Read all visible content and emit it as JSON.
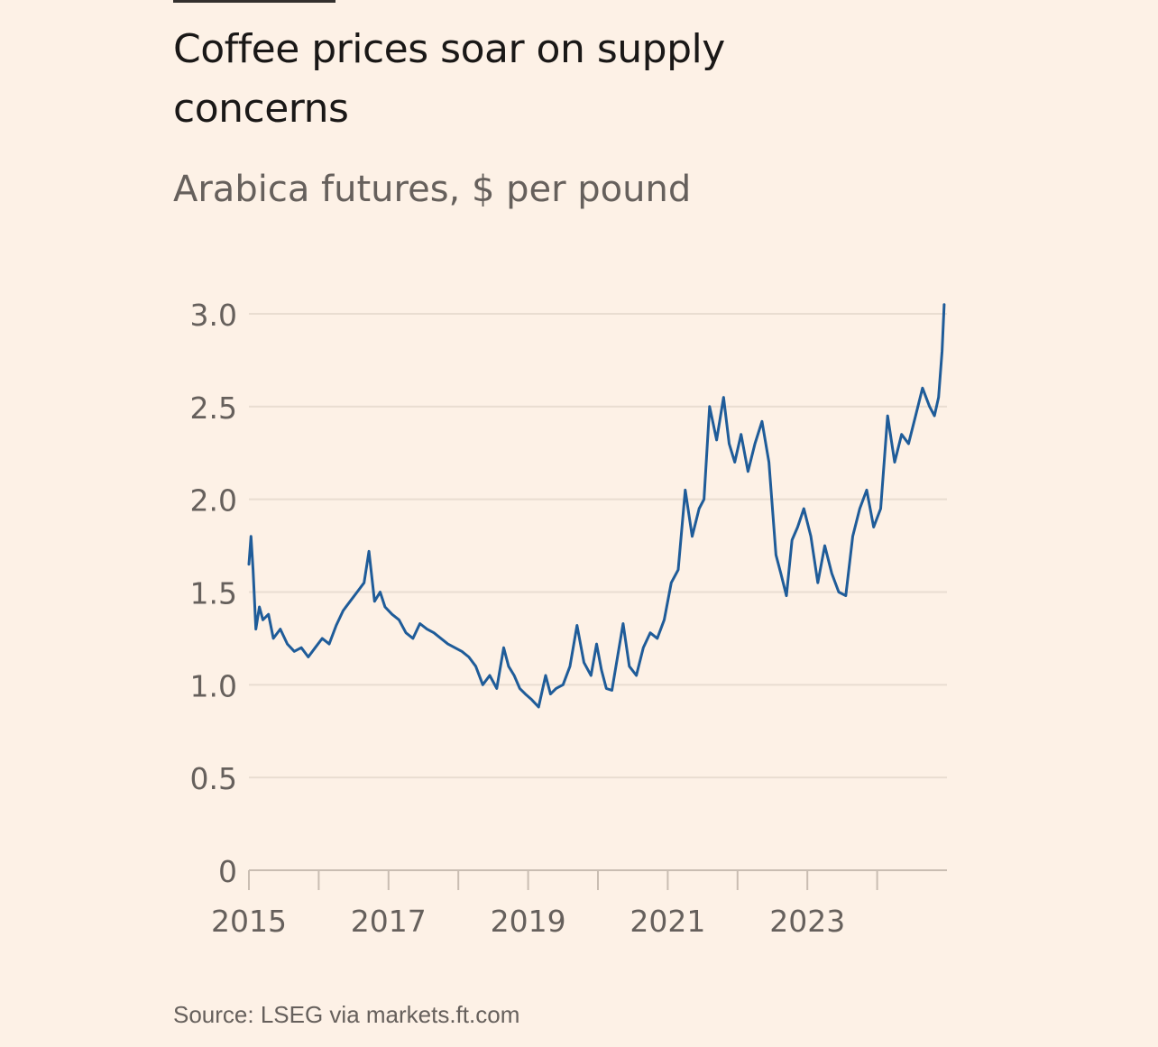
{
  "header": {
    "title": "Coffee prices soar on supply concerns",
    "subtitle": "Arabica futures, $ per pound"
  },
  "footer": {
    "source": "Source: LSEG via markets.ft.com"
  },
  "colors": {
    "background": "#fdf1e6",
    "line": "#1f5c99",
    "grid": "#e9ddd1",
    "tick_text": "#66605c"
  },
  "chart_data": {
    "type": "line",
    "title": "Coffee prices soar on supply concerns",
    "subtitle": "Arabica futures, $ per pound",
    "xlabel": "",
    "ylabel": "",
    "xlim": [
      2015.0,
      2025.0
    ],
    "ylim": [
      0,
      3.0
    ],
    "y_ticks": [
      0,
      0.5,
      1.0,
      1.5,
      2.0,
      2.5,
      3.0
    ],
    "y_tick_labels": [
      "0",
      "0.5",
      "1.0",
      "1.5",
      "2.0",
      "2.5",
      "3.0"
    ],
    "x_ticks": [
      2015,
      2016,
      2017,
      2018,
      2019,
      2020,
      2021,
      2022,
      2023,
      2024
    ],
    "x_tick_labels": [
      "2015",
      "2017",
      "2019",
      "2021",
      "2023"
    ],
    "x_tick_label_years": [
      2015,
      2017,
      2019,
      2021,
      2023
    ],
    "grid": true,
    "legend": "none",
    "series": [
      {
        "values_x": [
          2015.0,
          2015.03,
          2015.06,
          2015.1,
          2015.15,
          2015.2,
          2015.28,
          2015.35,
          2015.45,
          2015.55,
          2015.65,
          2015.75,
          2015.85,
          2015.95,
          2016.05,
          2016.15,
          2016.25,
          2016.35,
          2016.45,
          2016.55,
          2016.65,
          2016.72,
          2016.8,
          2016.88,
          2016.95,
          2017.05,
          2017.15,
          2017.25,
          2017.35,
          2017.45,
          2017.55,
          2017.65,
          2017.75,
          2017.85,
          2017.95,
          2018.05,
          2018.15,
          2018.25,
          2018.35,
          2018.45,
          2018.55,
          2018.65,
          2018.72,
          2018.8,
          2018.88,
          2018.96,
          2019.05,
          2019.15,
          2019.25,
          2019.32,
          2019.4,
          2019.5,
          2019.6,
          2019.7,
          2019.8,
          2019.9,
          2019.98,
          2020.05,
          2020.12,
          2020.2,
          2020.28,
          2020.36,
          2020.45,
          2020.55,
          2020.65,
          2020.75,
          2020.85,
          2020.95,
          2021.05,
          2021.15,
          2021.25,
          2021.35,
          2021.45,
          2021.52,
          2021.6,
          2021.7,
          2021.8,
          2021.88,
          2021.96,
          2022.05,
          2022.15,
          2022.25,
          2022.35,
          2022.45,
          2022.55,
          2022.62,
          2022.7,
          2022.78,
          2022.86,
          2022.95,
          2023.05,
          2023.15,
          2023.25,
          2023.35,
          2023.45,
          2023.55,
          2023.65,
          2023.75,
          2023.85,
          2023.95,
          2024.05,
          2024.15,
          2024.25,
          2024.35,
          2024.45,
          2024.55,
          2024.65,
          2024.75,
          2024.82,
          2024.88,
          2024.93,
          2024.96
        ],
        "values": [
          1.65,
          1.8,
          1.62,
          1.3,
          1.42,
          1.35,
          1.38,
          1.25,
          1.3,
          1.22,
          1.18,
          1.2,
          1.15,
          1.2,
          1.25,
          1.22,
          1.32,
          1.4,
          1.45,
          1.5,
          1.55,
          1.72,
          1.45,
          1.5,
          1.42,
          1.38,
          1.35,
          1.28,
          1.25,
          1.33,
          1.3,
          1.28,
          1.25,
          1.22,
          1.2,
          1.18,
          1.15,
          1.1,
          1.0,
          1.05,
          0.98,
          1.2,
          1.1,
          1.05,
          0.98,
          0.95,
          0.92,
          0.88,
          1.05,
          0.95,
          0.98,
          1.0,
          1.1,
          1.32,
          1.12,
          1.05,
          1.22,
          1.08,
          0.98,
          0.97,
          1.15,
          1.33,
          1.1,
          1.05,
          1.2,
          1.28,
          1.25,
          1.35,
          1.55,
          1.62,
          2.05,
          1.8,
          1.95,
          2.0,
          2.5,
          2.32,
          2.55,
          2.3,
          2.2,
          2.35,
          2.15,
          2.3,
          2.42,
          2.2,
          1.7,
          1.6,
          1.48,
          1.78,
          1.85,
          1.95,
          1.8,
          1.55,
          1.75,
          1.6,
          1.5,
          1.48,
          1.8,
          1.95,
          2.05,
          1.85,
          1.95,
          2.45,
          2.2,
          2.35,
          2.3,
          2.45,
          2.6,
          2.5,
          2.45,
          2.55,
          2.8,
          3.05
        ]
      }
    ]
  }
}
